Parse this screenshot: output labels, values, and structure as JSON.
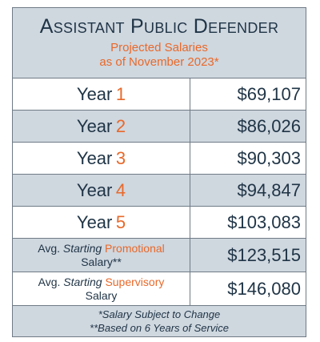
{
  "header": {
    "title": "Assistant Public Defender",
    "subtitle": "Projected Salaries",
    "as_of": "as of November 2023*"
  },
  "rows": [
    {
      "label": "Year",
      "number": "1",
      "amount": "$69,107"
    },
    {
      "label": "Year",
      "number": "2",
      "amount": "$86,026"
    },
    {
      "label": "Year",
      "number": "3",
      "amount": "$90,303"
    },
    {
      "label": "Year",
      "number": "4",
      "amount": "$94,847"
    },
    {
      "label": "Year",
      "number": "5",
      "amount": "$103,083"
    }
  ],
  "promotional": {
    "prefix": "Avg.",
    "starting": "Starting",
    "kind": "Promotional",
    "suffix": "Salary**",
    "amount": "$123,515"
  },
  "supervisory": {
    "prefix": "Avg.",
    "starting": "Starting",
    "kind": "Supervisory",
    "suffix": "Salary",
    "amount": "$146,080"
  },
  "footer": {
    "note1": "*Salary Subject to Change",
    "note2": "**Based on 6 Years of Service"
  },
  "colors": {
    "accent": "#e8692a",
    "navy": "#1f3446",
    "shade": "#cfd7df"
  }
}
